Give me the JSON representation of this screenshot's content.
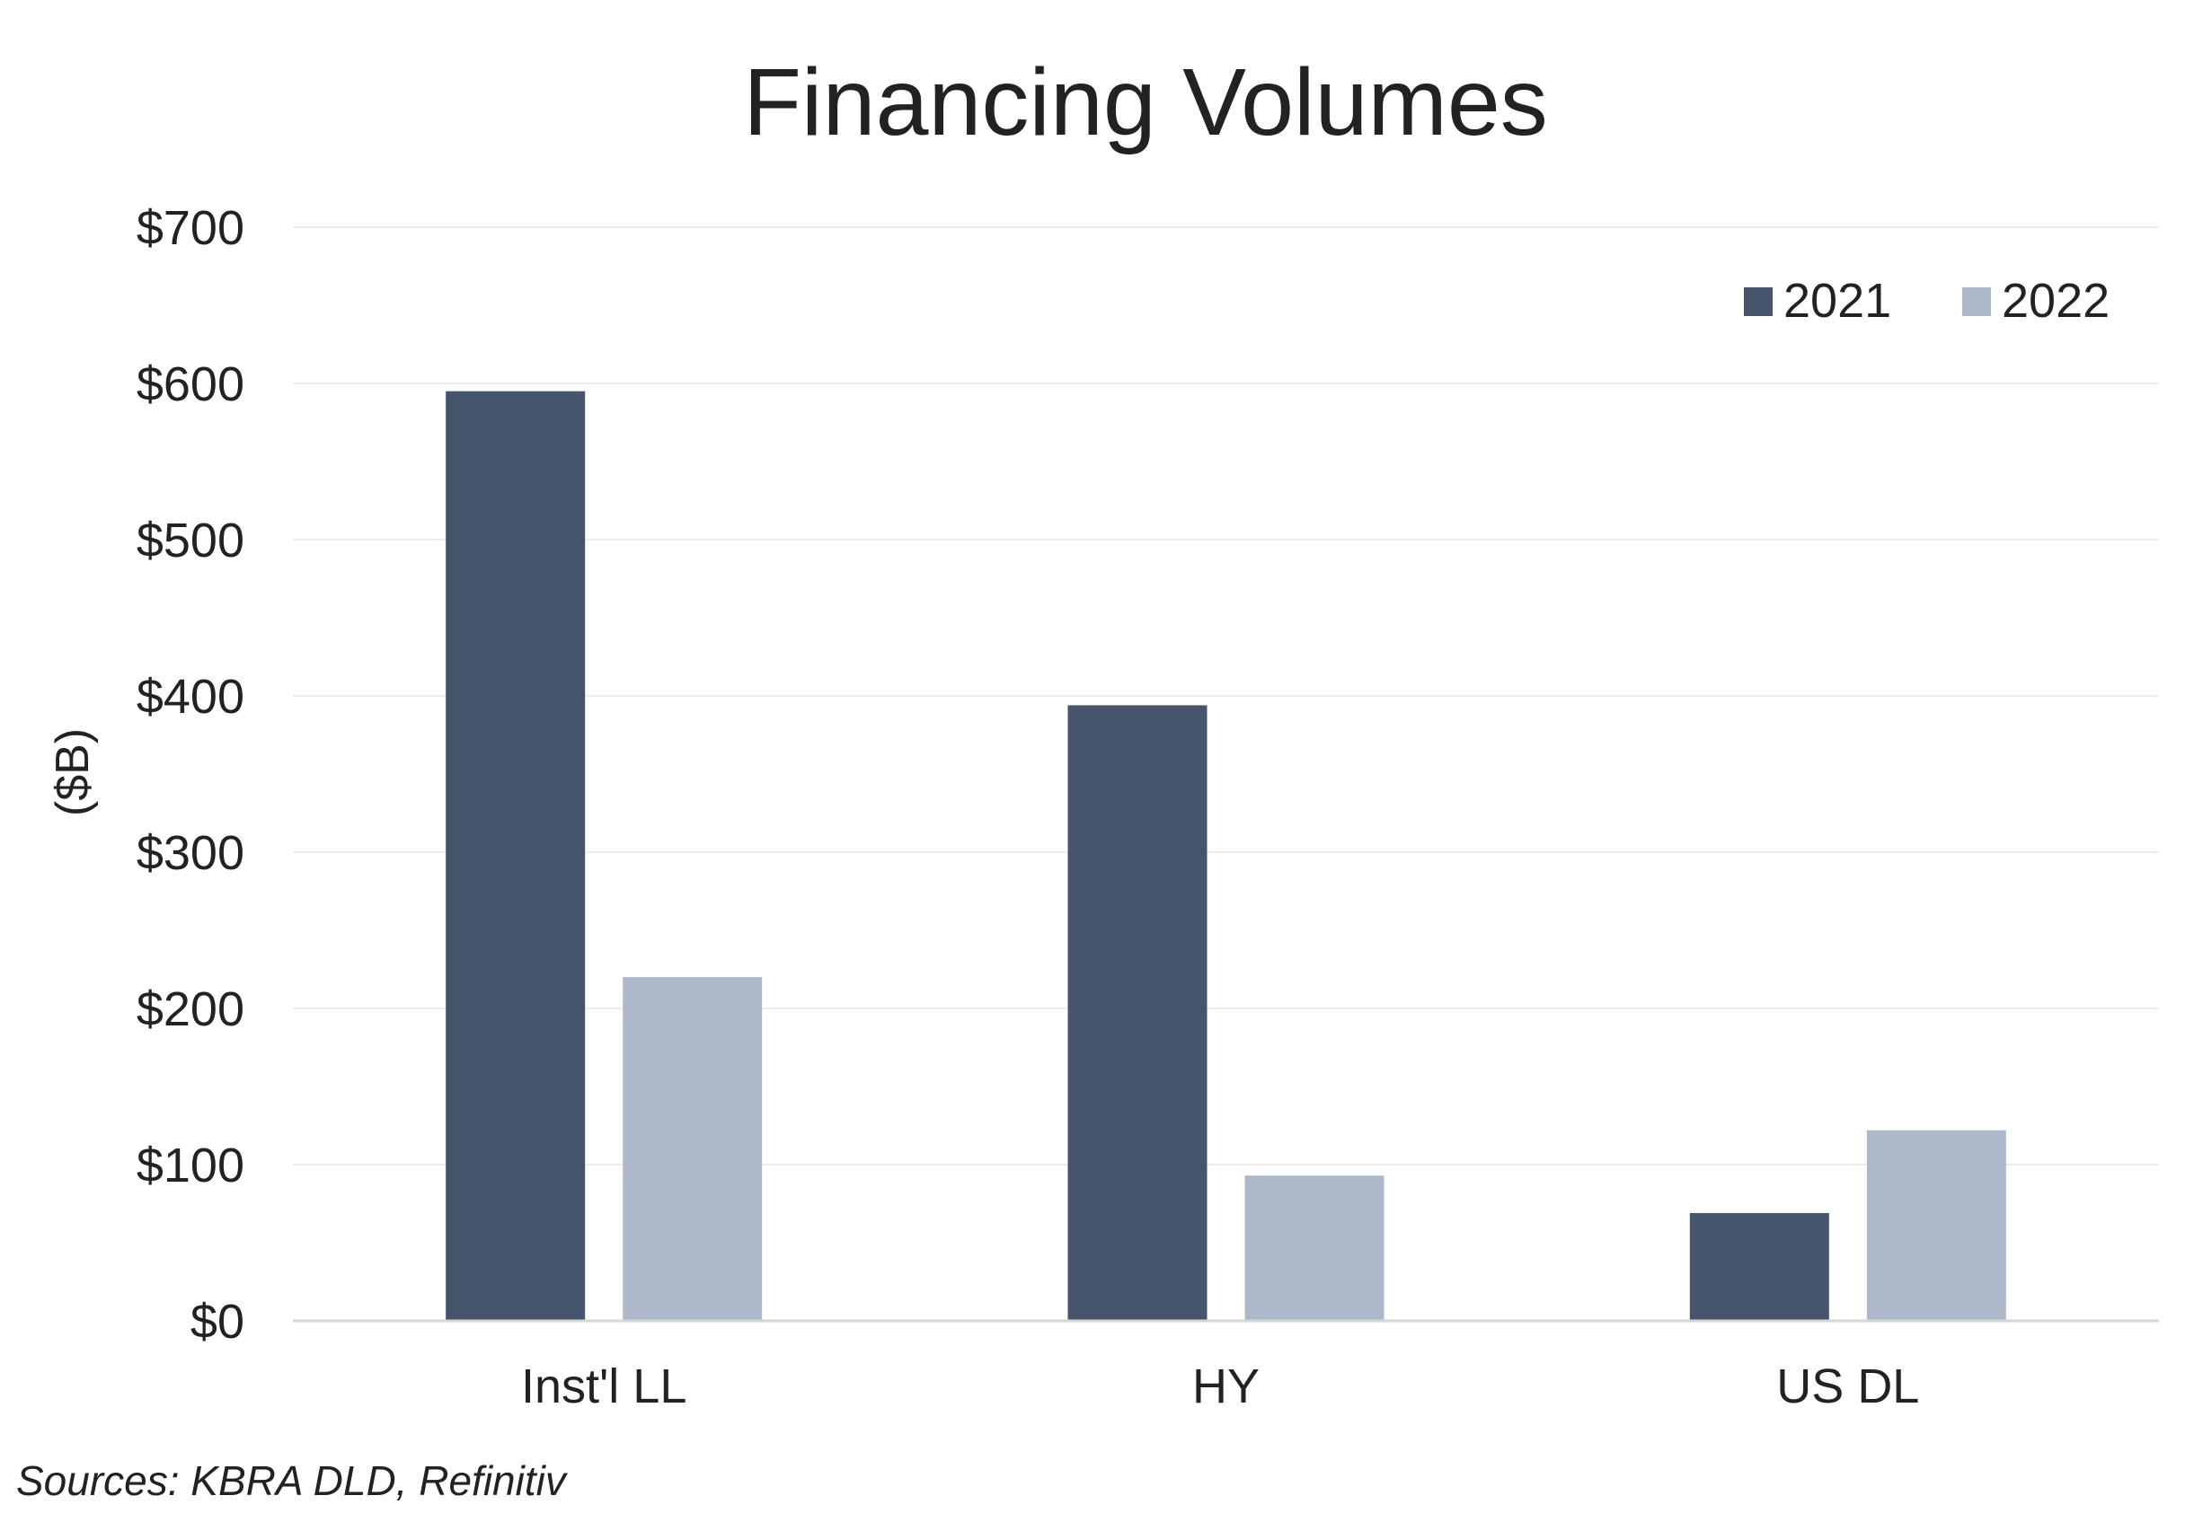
{
  "chart_data": {
    "type": "bar",
    "title": "Financing Volumes",
    "xlabel": "",
    "ylabel": "($B)",
    "categories": [
      "Inst'l LL",
      "HY",
      "US DL"
    ],
    "series": [
      {
        "name": "2021",
        "values": [
          595,
          394,
          69
        ],
        "color": "#46556b"
      },
      {
        "name": "2022",
        "values": [
          220,
          93,
          122
        ],
        "color": "#adb9cb"
      }
    ],
    "ylim": [
      0,
      700
    ],
    "yticks": [
      0,
      100,
      200,
      300,
      400,
      500,
      600,
      700
    ],
    "ytick_labels": [
      "$0",
      "$100",
      "$200",
      "$300",
      "$400",
      "$500",
      "$600",
      "$700"
    ],
    "grid": true,
    "legend_position": "top-right"
  },
  "footnote": "Sources: KBRA DLD, Refinitiv"
}
